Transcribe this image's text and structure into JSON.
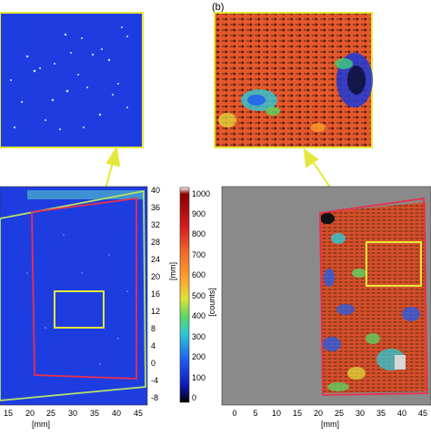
{
  "panel_b": {
    "label": "(b)"
  },
  "left_y_axis": {
    "ticks": [
      "40",
      "36",
      "32",
      "28",
      "24",
      "20",
      "16",
      "12",
      "8",
      "4",
      "0",
      "-4",
      "-8"
    ],
    "unit": "[mm]"
  },
  "left_x_axis": {
    "ticks": [
      "15",
      "20",
      "25",
      "30",
      "35",
      "40",
      "45"
    ],
    "unit": "[mm]"
  },
  "colorbar": {
    "ticks": [
      "1000",
      "900",
      "800",
      "700",
      "600",
      "500",
      "400",
      "300",
      "200",
      "100",
      "0"
    ],
    "unit": "[counts]",
    "colors": [
      "#ffffff",
      "#8a0000",
      "#d21a1a",
      "#f06a2a",
      "#ff9f2e",
      "#dfe23a",
      "#5ad860",
      "#2ec9d6",
      "#1f5ef0",
      "#0e1ab8",
      "#000000"
    ]
  },
  "right_x_axis": {
    "ticks": [
      "0",
      "5",
      "10",
      "15",
      "20",
      "25",
      "30",
      "35",
      "40",
      "45"
    ],
    "unit": "[mm]"
  },
  "colors": {
    "frame_yellow": "#e4e83a",
    "roi_red": "#e8304e",
    "particle_bg_blue": "#1e3de0",
    "vector_bg_orange": "#e6582c",
    "gray_bg": "#8a8a8a"
  }
}
